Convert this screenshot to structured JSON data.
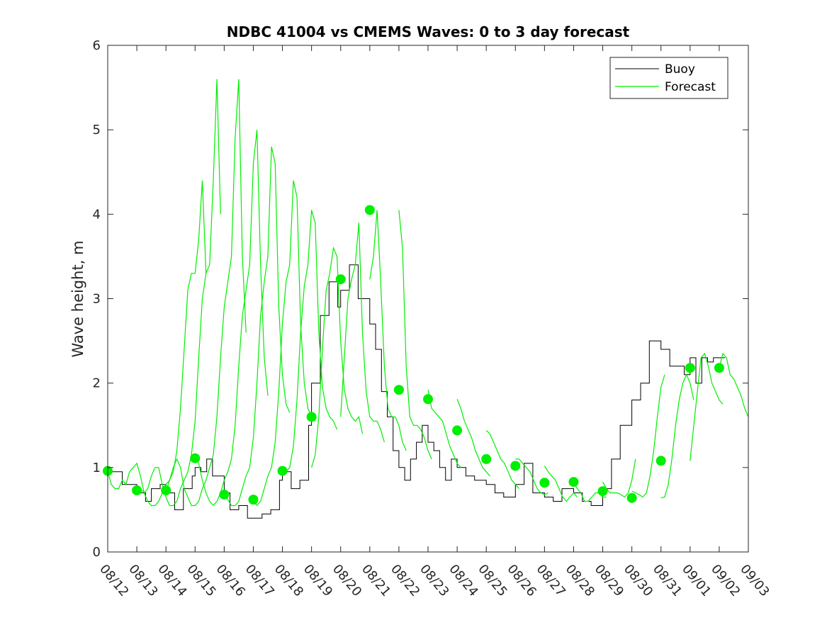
{
  "colors": {
    "buoy": "#000000",
    "forecast": "#00ee00",
    "axis": "#262626"
  },
  "chart_data": {
    "type": "line",
    "title": "NDBC 41004 vs CMEMS Waves: 0 to 3 day forecast",
    "xlabel": "",
    "ylabel": "Wave height, m",
    "xlim": [
      "08/12",
      "09/03"
    ],
    "ylim": [
      0,
      6
    ],
    "yticks": [
      "0",
      "1",
      "2",
      "3",
      "4",
      "5",
      "6"
    ],
    "xticks": [
      "08/12",
      "08/13",
      "08/14",
      "08/15",
      "08/16",
      "08/17",
      "08/18",
      "08/19",
      "08/20",
      "08/21",
      "08/22",
      "08/23",
      "08/24",
      "08/25",
      "08/26",
      "08/27",
      "08/28",
      "08/29",
      "08/30",
      "08/31",
      "09/01",
      "09/02",
      "09/03"
    ],
    "grid": false,
    "legend": {
      "location": "top-right",
      "entries": [
        "Buoy",
        "Forecast"
      ]
    },
    "buoy": {
      "name": "Buoy",
      "x_days": [
        0,
        0.5,
        1,
        1.3,
        1.5,
        1.8,
        2,
        2.3,
        2.6,
        2.9,
        3,
        3.2,
        3.4,
        3.6,
        4,
        4.2,
        4.5,
        4.8,
        5,
        5.3,
        5.6,
        5.9,
        6,
        6.3,
        6.6,
        6.9,
        7,
        7.3,
        7.6,
        7.9,
        8,
        8.3,
        8.6,
        9,
        9.2,
        9.4,
        9.6,
        9.8,
        10,
        10.2,
        10.4,
        10.6,
        10.8,
        11,
        11.2,
        11.4,
        11.6,
        11.8,
        12,
        12.3,
        12.6,
        13,
        13.3,
        13.6,
        14,
        14.3,
        14.6,
        15,
        15.3,
        15.6,
        16,
        16.3,
        16.6,
        17,
        17.3,
        17.6,
        18,
        18.3,
        18.6,
        19,
        19.3,
        19.6,
        19.8,
        20,
        20.2,
        20.4,
        20.6,
        20.8,
        21,
        21.2
      ],
      "values": [
        0.95,
        0.8,
        0.7,
        0.6,
        0.75,
        0.8,
        0.7,
        0.5,
        0.75,
        0.9,
        1.0,
        0.95,
        1.1,
        0.9,
        0.7,
        0.5,
        0.55,
        0.4,
        0.4,
        0.45,
        0.5,
        0.85,
        0.95,
        0.75,
        0.85,
        1.5,
        2.0,
        2.8,
        3.2,
        2.9,
        3.1,
        3.4,
        3.0,
        2.7,
        2.4,
        1.9,
        1.6,
        1.2,
        1.0,
        0.85,
        1.1,
        1.3,
        1.5,
        1.3,
        1.2,
        1.0,
        0.85,
        1.1,
        1.0,
        0.9,
        0.85,
        0.8,
        0.7,
        0.65,
        0.8,
        1.05,
        0.7,
        0.65,
        0.6,
        0.75,
        0.7,
        0.6,
        0.55,
        0.75,
        1.1,
        1.5,
        1.8,
        2.0,
        2.5,
        2.4,
        2.2,
        2.2,
        2.1,
        2.3,
        2.0,
        2.3,
        2.25,
        2.3,
        2.3,
        2.3
      ]
    },
    "forecast": {
      "name": "Forecast",
      "runs": [
        {
          "start": 0,
          "values": [
            0.95,
            0.8,
            0.75,
            0.75,
            0.85,
            0.8,
            0.95,
            1.0,
            1.05,
            0.9,
            0.7,
            0.6,
            0.55,
            0.55,
            0.6,
            0.7,
            0.8,
            0.85,
            0.95,
            1.2,
            1.7,
            2.4,
            3.1,
            3.3,
            3.3,
            3.7,
            4.4,
            3.3
          ]
        },
        {
          "start": 1,
          "values": [
            0.72,
            0.75,
            0.7,
            0.75,
            0.9,
            1.0,
            1.0,
            0.8,
            0.65,
            0.55,
            0.55,
            0.6,
            0.75,
            0.85,
            0.95,
            1.15,
            1.55,
            2.3,
            3.0,
            3.3,
            3.4,
            4.4,
            5.6,
            4.0
          ]
        },
        {
          "start": 2,
          "values": [
            0.72,
            0.85,
            1.0,
            1.1,
            1.0,
            0.75,
            0.65,
            0.55,
            0.55,
            0.6,
            0.75,
            0.85,
            1.0,
            1.15,
            1.6,
            2.3,
            2.9,
            3.2,
            3.5,
            4.9,
            5.6,
            3.5,
            2.6
          ]
        },
        {
          "start": 3,
          "values": [
            1.1,
            1.05,
            0.85,
            0.7,
            0.6,
            0.55,
            0.6,
            0.7,
            0.85,
            0.95,
            1.1,
            1.5,
            2.2,
            2.8,
            3.1,
            3.4,
            4.6,
            5.0,
            3.4,
            2.3,
            1.85
          ]
        },
        {
          "start": 4,
          "values": [
            0.68,
            0.62,
            0.55,
            0.55,
            0.6,
            0.75,
            0.9,
            1.0,
            1.35,
            2.0,
            2.8,
            3.2,
            3.5,
            4.8,
            4.6,
            2.9,
            2.1,
            1.75,
            1.65
          ]
        },
        {
          "start": 5,
          "values": [
            0.6,
            0.55,
            0.6,
            0.75,
            0.9,
            1.0,
            1.3,
            1.9,
            2.7,
            3.2,
            3.4,
            4.4,
            4.2,
            2.7,
            2.0,
            1.7,
            1.6,
            1.55
          ]
        },
        {
          "start": 6,
          "values": [
            0.95,
            0.95,
            1.0,
            1.25,
            1.8,
            2.6,
            3.15,
            3.4,
            4.05,
            3.9,
            2.6,
            1.95,
            1.7,
            1.6,
            1.55,
            1.45
          ]
        },
        {
          "start": 7,
          "values": [
            1.0,
            1.15,
            1.6,
            2.4,
            3.1,
            3.3,
            3.6,
            3.5,
            2.5,
            1.92,
            1.7,
            1.6,
            1.55,
            1.6,
            1.4
          ]
        },
        {
          "start": 8,
          "values": [
            1.6,
            2.3,
            3.0,
            3.23,
            3.4,
            3.9,
            2.6,
            1.9,
            1.6,
            1.55,
            1.55,
            1.45,
            1.3
          ]
        },
        {
          "start": 9,
          "values": [
            3.23,
            3.5,
            4.05,
            3.2,
            2.2,
            1.7,
            1.6,
            1.6,
            1.5,
            1.3,
            1.2
          ]
        },
        {
          "start": 10,
          "values": [
            4.05,
            3.6,
            2.2,
            1.6,
            1.5,
            1.5,
            1.45,
            1.35,
            1.2,
            1.1
          ]
        },
        {
          "start": 11,
          "values": [
            1.92,
            1.7,
            1.65,
            1.6,
            1.55,
            1.4,
            1.25,
            1.15,
            1.05,
            1.0
          ]
        },
        {
          "start": 12,
          "values": [
            1.81,
            1.7,
            1.55,
            1.45,
            1.35,
            1.2,
            1.1,
            1.0,
            0.95,
            0.9
          ]
        },
        {
          "start": 13,
          "values": [
            1.44,
            1.4,
            1.3,
            1.2,
            1.1,
            1.05,
            0.95,
            0.85,
            0.8,
            0.75
          ]
        },
        {
          "start": 14,
          "values": [
            1.1,
            1.1,
            1.05,
            1.0,
            0.95,
            0.85,
            0.75,
            0.7,
            0.68,
            0.7
          ]
        },
        {
          "start": 15,
          "values": [
            1.02,
            0.95,
            0.9,
            0.85,
            0.75,
            0.65,
            0.6,
            0.65,
            0.7,
            0.65
          ]
        },
        {
          "start": 16,
          "values": [
            0.82,
            0.75,
            0.7,
            0.6,
            0.6,
            0.65,
            0.7,
            0.7,
            0.65,
            0.65
          ]
        },
        {
          "start": 17,
          "values": [
            0.83,
            0.75,
            0.7,
            0.7,
            0.7,
            0.68,
            0.65,
            0.7,
            0.85,
            1.1
          ]
        },
        {
          "start": 18,
          "values": [
            0.72,
            0.7,
            0.68,
            0.65,
            0.7,
            0.9,
            1.2,
            1.6,
            1.95,
            2.1
          ]
        },
        {
          "start": 19,
          "values": [
            0.64,
            0.65,
            0.8,
            1.1,
            1.5,
            1.8,
            2.0,
            2.1,
            2.0,
            1.8
          ]
        },
        {
          "start": 20,
          "values": [
            1.08,
            1.5,
            1.9,
            2.3,
            2.35,
            2.2,
            2.0,
            1.9,
            1.8,
            1.75
          ]
        },
        {
          "start": 21,
          "values": [
            2.18,
            2.35,
            2.3,
            2.1,
            2.05,
            1.95,
            1.85,
            1.7,
            1.6
          ]
        }
      ],
      "markers_x": [
        0,
        1,
        2,
        3,
        4,
        5,
        6,
        7,
        8,
        9,
        10,
        11,
        12,
        13,
        14,
        15,
        16,
        17,
        18,
        19,
        20,
        21
      ],
      "markers_y": [
        0.96,
        0.73,
        0.73,
        1.11,
        0.68,
        0.62,
        0.96,
        1.6,
        3.23,
        4.05,
        1.92,
        1.81,
        1.44,
        1.1,
        1.02,
        0.82,
        0.83,
        0.72,
        0.64,
        1.08,
        2.18,
        2.18
      ]
    }
  }
}
